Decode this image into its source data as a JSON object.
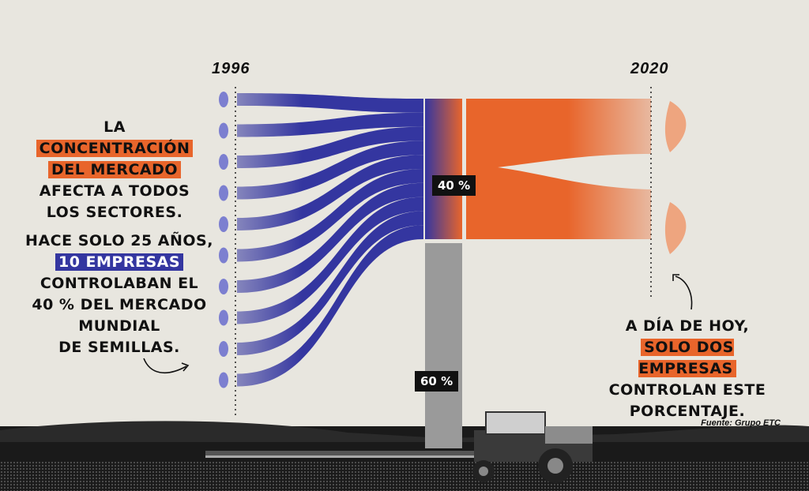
{
  "years": {
    "start": "1996",
    "end": "2020"
  },
  "left_text": {
    "line1_pre": "LA",
    "line1_hl": "CONCENTRACIÓN",
    "line2_hl": "DEL MERCADO",
    "line3": "AFECTA A TODOS",
    "line4": "LOS SECTORES."
  },
  "left_text2": {
    "line1": "HACE SOLO 25 AÑOS,",
    "line2_hl": "10 EMPRESAS",
    "line3": "CONTROLABAN EL",
    "line4": "40 % DEL MERCADO",
    "line5": "MUNDIAL",
    "line6": "DE SEMILLAS."
  },
  "right_text": {
    "line1": "A DÍA DE HOY,",
    "line2_hl": "SOLO DOS EMPRESAS",
    "line3": "CONTROLAN ESTE",
    "line4": "PORCENTAJE."
  },
  "labels": {
    "top_pct": "40 %",
    "bottom_pct": "60 %"
  },
  "source": "Fuente: Grupo ETC",
  "colors": {
    "blue": "#3436a0",
    "orange": "#e8652b",
    "gray": "#9a9a9a",
    "background": "#e8e6df"
  },
  "chart_data": {
    "type": "sankey",
    "nodes_1996": 10,
    "nodes_2020": 2,
    "share_concentrated": 40,
    "share_rest": 60
  }
}
